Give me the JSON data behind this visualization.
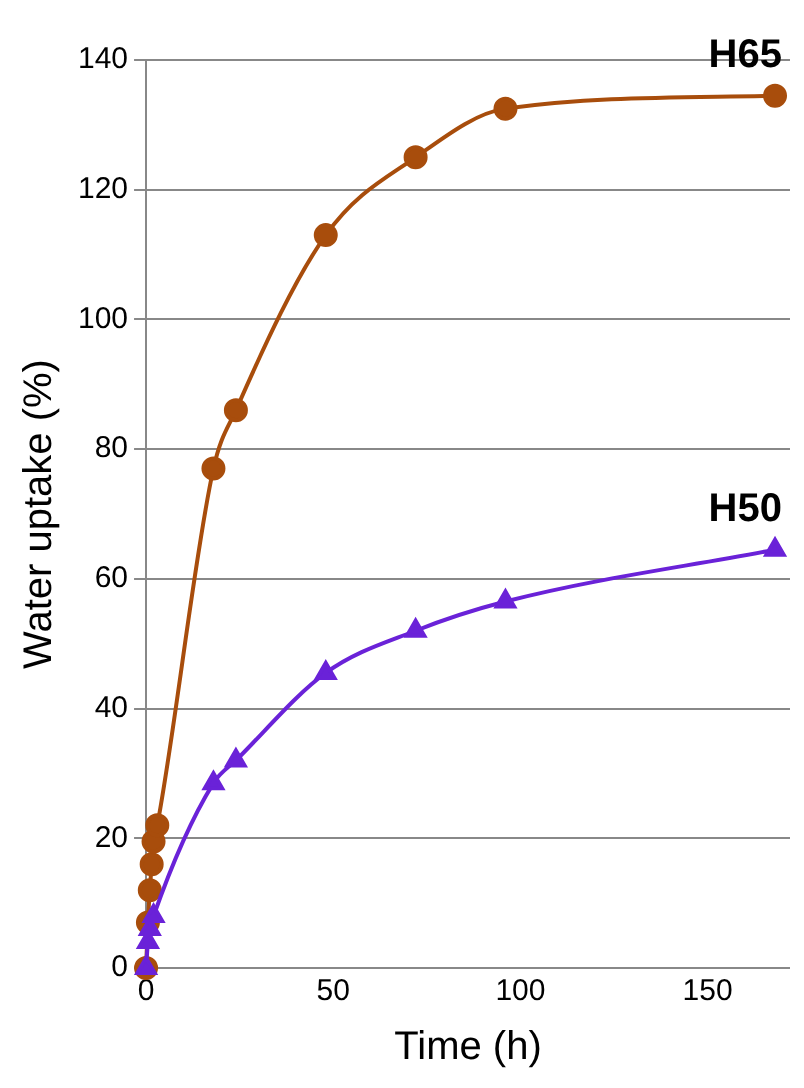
{
  "chart_data": {
    "type": "line",
    "xlabel": "Time (h)",
    "ylabel": "Water uptake (%)",
    "xlim": [
      0,
      172
    ],
    "xticks": [
      0,
      50,
      100,
      150
    ],
    "ylim": [
      0,
      140
    ],
    "yticks": [
      0,
      20,
      40,
      60,
      80,
      100,
      120,
      140
    ],
    "grid": "y",
    "legend": false,
    "series": [
      {
        "name": "H65",
        "color": "#a84d0c",
        "marker": "circle",
        "x": [
          0,
          0.5,
          1,
          1.5,
          2,
          3,
          18,
          24,
          48,
          72,
          96,
          168
        ],
        "values": [
          0,
          7,
          12,
          16,
          19.5,
          22,
          77,
          86,
          113,
          125,
          132.5,
          134.5
        ]
      },
      {
        "name": "H50",
        "color": "#6a22d8",
        "marker": "triangle",
        "x": [
          0,
          0.5,
          1,
          2,
          18,
          24,
          48,
          72,
          96,
          168
        ],
        "values": [
          0,
          4,
          6,
          8,
          28.5,
          32,
          45.5,
          52,
          56.5,
          64.5
        ]
      }
    ]
  }
}
